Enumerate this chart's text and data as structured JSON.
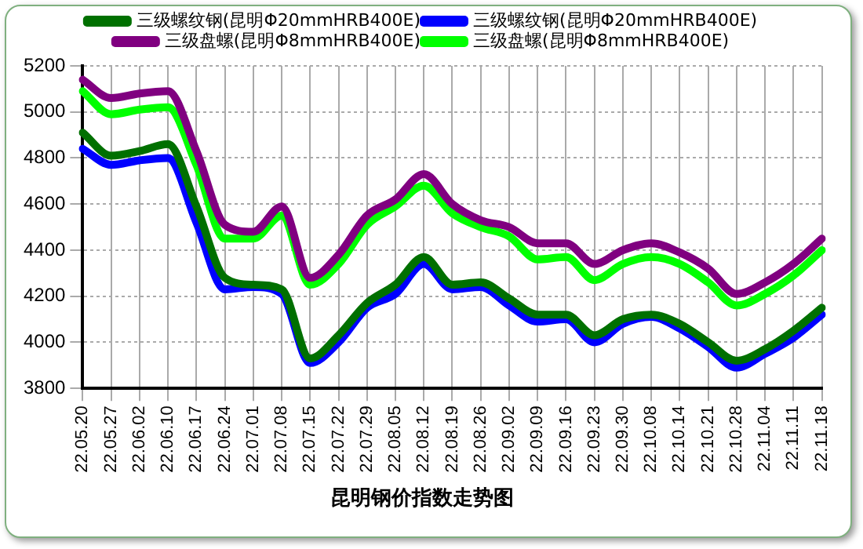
{
  "chart_data": {
    "type": "line",
    "title": "昆明钢价指数走势图",
    "categories": [
      "22.05.20",
      "22.05.27",
      "22.06.02",
      "22.06.10",
      "22.06.17",
      "22.06.24",
      "22.07.01",
      "22.07.08",
      "22.07.15",
      "22.07.22",
      "22.07.29",
      "22.08.05",
      "22.08.12",
      "22.08.19",
      "22.08.26",
      "22.09.02",
      "22.09.09",
      "22.09.16",
      "22.09.23",
      "22.09.30",
      "22.10.08",
      "22.10.14",
      "22.10.21",
      "22.10.28",
      "22.11.04",
      "22.11.11",
      "22.11.18"
    ],
    "series": [
      {
        "name": "三级螺纹钢(昆明Φ20mmHRB400E)",
        "color": "#007000",
        "values": [
          4910,
          4810,
          4830,
          4860,
          4590,
          4280,
          4250,
          4230,
          3930,
          4030,
          4170,
          4250,
          4370,
          4250,
          4260,
          4190,
          4120,
          4120,
          4030,
          4100,
          4120,
          4080,
          4000,
          3920,
          3970,
          4050,
          4150
        ]
      },
      {
        "name": "三级螺纹钢(昆明Φ20mmHRB400E)",
        "color": "#0000ff",
        "values": [
          4840,
          4770,
          4790,
          4800,
          4520,
          4230,
          4240,
          4210,
          3910,
          4000,
          4150,
          4210,
          4340,
          4230,
          4240,
          4160,
          4090,
          4100,
          4000,
          4080,
          4110,
          4060,
          3980,
          3890,
          3950,
          4020,
          4120
        ]
      },
      {
        "name": "三级盘螺(昆明Φ8mmHRB400E)",
        "color": "#800080",
        "values": [
          5140,
          5060,
          5080,
          5090,
          4830,
          4510,
          4480,
          4590,
          4280,
          4380,
          4550,
          4620,
          4730,
          4600,
          4530,
          4500,
          4430,
          4430,
          4340,
          4400,
          4430,
          4390,
          4320,
          4210,
          4260,
          4340,
          4450
        ]
      },
      {
        "name": "三级盘螺(昆明Φ8mmHRB400E)",
        "color": "#00ff00",
        "values": [
          5090,
          4990,
          5010,
          5020,
          4770,
          4450,
          4450,
          4550,
          4250,
          4340,
          4510,
          4590,
          4680,
          4560,
          4500,
          4460,
          4360,
          4370,
          4270,
          4340,
          4370,
          4340,
          4260,
          4160,
          4210,
          4290,
          4400
        ]
      }
    ],
    "ylim": [
      3800,
      5200
    ],
    "yticks": [
      3800,
      4000,
      4200,
      4400,
      4600,
      4800,
      5000,
      5200
    ],
    "grid": true,
    "legend": "top",
    "marker": "none",
    "line_style": "solid"
  }
}
